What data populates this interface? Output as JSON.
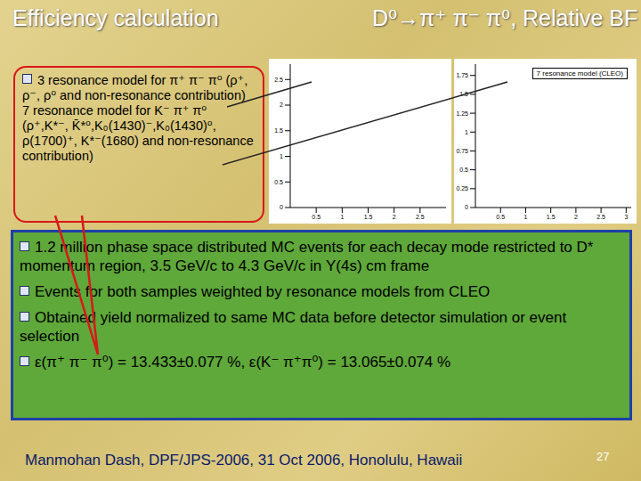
{
  "header": {
    "title": "Efficiency calculation",
    "subtitle": "D⁰→π⁺ π⁻ π⁰, Relative BF"
  },
  "callout": [
    "3 resonance model for π⁺ π⁻ π⁰ (ρ⁺, ρ⁻, ρ⁰ and non-resonance contribution)",
    "7 resonance model for K⁻ π⁺ π⁰ (ρ⁺,K*⁻, K̄*⁰,K₀(1430)⁻,K₀(1430)⁰, ρ(1700)⁺, K*⁻(1680) and non-resonance contribution)"
  ],
  "chart_data": [
    {
      "type": "scatter",
      "xlim": [
        0,
        3
      ],
      "xticks": [
        0.5,
        1,
        1.5,
        2,
        2.5
      ],
      "ylim": [
        0,
        2.8
      ],
      "yticks": [
        0,
        0.5,
        1,
        1.5,
        2,
        2.5
      ],
      "grid": false
    },
    {
      "type": "scatter",
      "title": "7 resonance model (CLEO)",
      "xlim": [
        0,
        3.1
      ],
      "xticks": [
        0.5,
        1,
        1.5,
        2,
        2.5,
        3
      ],
      "ylim": [
        0,
        1.9
      ],
      "yticks": [
        0,
        0.25,
        0.5,
        0.75,
        1,
        1.25,
        1.5,
        1.75
      ],
      "grid": false
    }
  ],
  "bullets": [
    "1.2 million phase space distributed MC events for each decay mode restricted to D* momentum region, 3.5 GeV/c to 4.3 GeV/c in Υ(4s) cm frame",
    "Events for both samples weighted by resonance models from CLEO",
    "Obtained yield normalized to same MC data before detector simulation or event selection",
    "ε(π⁺ π⁻ π⁰) = 13.433±0.077 %, ε(K⁻ π⁺π⁰) = 13.065±0.074 %"
  ],
  "footer": {
    "text": "Manmohan Dash, DPF/JPS-2006, 31 Oct 2006, Honolulu, Hawaii",
    "page": 27
  }
}
